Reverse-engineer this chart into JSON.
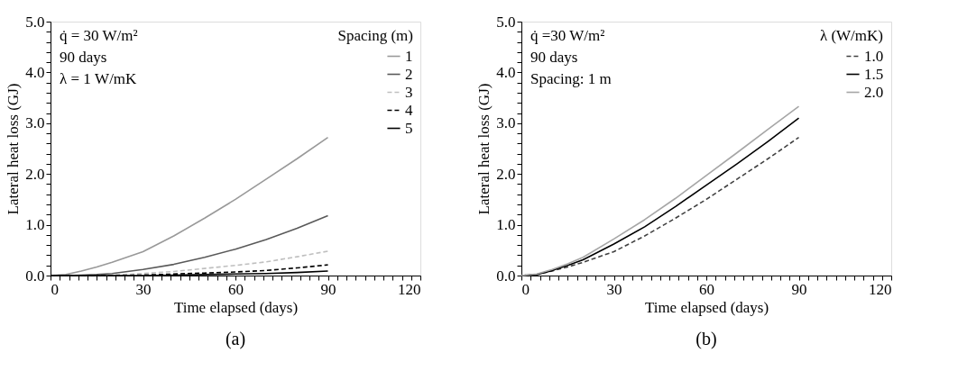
{
  "chart_data": [
    {
      "type": "line",
      "title": "(a)",
      "xlabel": "Time elapsed (days)",
      "ylabel": "Lateral heat loss (GJ)",
      "legend_title": "Spacing (m)",
      "legend": "top right",
      "grid": false,
      "marker": "none",
      "annotations": [
        "q̇ = 30 W/m²",
        "90 days",
        "λ = 1 W/mK"
      ],
      "x": [
        0,
        5,
        10,
        15,
        20,
        30,
        40,
        50,
        60,
        70,
        80,
        90
      ],
      "xlim": [
        0,
        120
      ],
      "xticks": [
        0,
        {
          "value": 3,
          "label": null
        },
        {
          "value": 6,
          "label": null
        },
        {
          "value": 9,
          "label": null
        },
        {
          "value": 12,
          "label": null
        },
        {
          "value": 15,
          "label": null
        },
        {
          "value": 18,
          "label": null
        },
        {
          "value": 21,
          "label": null
        },
        {
          "value": 24,
          "label": null
        },
        {
          "value": 27,
          "label": null
        },
        30,
        {
          "value": 33,
          "label": null
        },
        {
          "value": 36,
          "label": null
        },
        {
          "value": 39,
          "label": null
        },
        {
          "value": 42,
          "label": null
        },
        {
          "value": 45,
          "label": null
        },
        {
          "value": 48,
          "label": null
        },
        {
          "value": 51,
          "label": null
        },
        {
          "value": 54,
          "label": null
        },
        {
          "value": 57,
          "label": null
        },
        60,
        {
          "value": 63,
          "label": null
        },
        {
          "value": 66,
          "label": null
        },
        {
          "value": 69,
          "label": null
        },
        {
          "value": 72,
          "label": null
        },
        {
          "value": 75,
          "label": null
        },
        {
          "value": 78,
          "label": null
        },
        {
          "value": 81,
          "label": null
        },
        {
          "value": 84,
          "label": null
        },
        {
          "value": 87,
          "label": null
        },
        90,
        {
          "value": 93,
          "label": null
        },
        {
          "value": 96,
          "label": null
        },
        {
          "value": 99,
          "label": null
        },
        {
          "value": 102,
          "label": null
        },
        {
          "value": 105,
          "label": null
        },
        {
          "value": 108,
          "label": null
        },
        {
          "value": 111,
          "label": null
        },
        {
          "value": 114,
          "label": null
        },
        {
          "value": 117,
          "label": null
        },
        120
      ],
      "ylim": [
        0,
        5
      ],
      "yticks": [
        {
          "value": 0,
          "label": "0.0"
        },
        {
          "value": 0.2,
          "label": null
        },
        {
          "value": 0.4,
          "label": null
        },
        {
          "value": 0.6,
          "label": null
        },
        {
          "value": 0.8,
          "label": null
        },
        {
          "value": 1,
          "label": "1.0"
        },
        {
          "value": 1.2,
          "label": null
        },
        {
          "value": 1.4,
          "label": null
        },
        {
          "value": 1.6,
          "label": null
        },
        {
          "value": 1.8,
          "label": null
        },
        {
          "value": 2,
          "label": "2.0"
        },
        {
          "value": 2.2,
          "label": null
        },
        {
          "value": 2.4,
          "label": null
        },
        {
          "value": 2.6,
          "label": null
        },
        {
          "value": 2.8,
          "label": null
        },
        {
          "value": 3,
          "label": "3.0"
        },
        {
          "value": 3.2,
          "label": null
        },
        {
          "value": 3.4,
          "label": null
        },
        {
          "value": 3.6,
          "label": null
        },
        {
          "value": 3.8,
          "label": null
        },
        {
          "value": 4,
          "label": "4.0"
        },
        {
          "value": 4.2,
          "label": null
        },
        {
          "value": 4.4,
          "label": null
        },
        {
          "value": 4.6,
          "label": null
        },
        {
          "value": 4.8,
          "label": null
        },
        {
          "value": 5,
          "label": "5.0"
        }
      ],
      "series": [
        {
          "name": "1",
          "color": "#999999",
          "line_style": "solid",
          "values": [
            0,
            0.02,
            0.09,
            0.17,
            0.26,
            0.47,
            0.78,
            1.13,
            1.5,
            1.9,
            2.3,
            2.72
          ]
        },
        {
          "name": "2",
          "color": "#595959",
          "line_style": "solid",
          "values": [
            0,
            0,
            0.01,
            0.02,
            0.04,
            0.12,
            0.22,
            0.36,
            0.52,
            0.71,
            0.93,
            1.18
          ]
        },
        {
          "name": "3",
          "color": "#bfbfbf",
          "line_style": "dashed",
          "values": [
            0,
            0,
            0,
            0,
            0.01,
            0.04,
            0.08,
            0.14,
            0.2,
            0.27,
            0.37,
            0.48
          ]
        },
        {
          "name": "4",
          "color": "#000000",
          "line_style": "dashed",
          "values": [
            0,
            0,
            0,
            0,
            0,
            0.01,
            0.03,
            0.05,
            0.07,
            0.1,
            0.15,
            0.21
          ]
        },
        {
          "name": "5",
          "color": "#000000",
          "line_style": "solid",
          "values": [
            0,
            0,
            0,
            0,
            0,
            0,
            0.01,
            0.02,
            0.03,
            0.04,
            0.06,
            0.09
          ]
        }
      ]
    },
    {
      "type": "line",
      "title": "(b)",
      "xlabel": "Time elapsed (days)",
      "ylabel": "Lateral heat loss (GJ)",
      "legend_title": "λ (W/mK)",
      "legend": "top right",
      "grid": false,
      "marker": "none",
      "annotations": [
        "q̇ =30 W/m²",
        "90 days",
        "Spacing: 1 m"
      ],
      "x": [
        0,
        5,
        10,
        15,
        20,
        30,
        40,
        50,
        60,
        70,
        80,
        90
      ],
      "xlim": [
        0,
        120
      ],
      "xticks": [
        0,
        {
          "value": 3,
          "label": null
        },
        {
          "value": 6,
          "label": null
        },
        {
          "value": 9,
          "label": null
        },
        {
          "value": 12,
          "label": null
        },
        {
          "value": 15,
          "label": null
        },
        {
          "value": 18,
          "label": null
        },
        {
          "value": 21,
          "label": null
        },
        {
          "value": 24,
          "label": null
        },
        {
          "value": 27,
          "label": null
        },
        30,
        {
          "value": 33,
          "label": null
        },
        {
          "value": 36,
          "label": null
        },
        {
          "value": 39,
          "label": null
        },
        {
          "value": 42,
          "label": null
        },
        {
          "value": 45,
          "label": null
        },
        {
          "value": 48,
          "label": null
        },
        {
          "value": 51,
          "label": null
        },
        {
          "value": 54,
          "label": null
        },
        {
          "value": 57,
          "label": null
        },
        60,
        {
          "value": 63,
          "label": null
        },
        {
          "value": 66,
          "label": null
        },
        {
          "value": 69,
          "label": null
        },
        {
          "value": 72,
          "label": null
        },
        {
          "value": 75,
          "label": null
        },
        {
          "value": 78,
          "label": null
        },
        {
          "value": 81,
          "label": null
        },
        {
          "value": 84,
          "label": null
        },
        {
          "value": 87,
          "label": null
        },
        90,
        {
          "value": 93,
          "label": null
        },
        {
          "value": 96,
          "label": null
        },
        {
          "value": 99,
          "label": null
        },
        {
          "value": 102,
          "label": null
        },
        {
          "value": 105,
          "label": null
        },
        {
          "value": 108,
          "label": null
        },
        {
          "value": 111,
          "label": null
        },
        {
          "value": 114,
          "label": null
        },
        {
          "value": 117,
          "label": null
        },
        120
      ],
      "ylim": [
        0,
        5
      ],
      "yticks": [
        {
          "value": 0,
          "label": "0.0"
        },
        {
          "value": 0.2,
          "label": null
        },
        {
          "value": 0.4,
          "label": null
        },
        {
          "value": 0.6,
          "label": null
        },
        {
          "value": 0.8,
          "label": null
        },
        {
          "value": 1,
          "label": "1.0"
        },
        {
          "value": 1.2,
          "label": null
        },
        {
          "value": 1.4,
          "label": null
        },
        {
          "value": 1.6,
          "label": null
        },
        {
          "value": 1.8,
          "label": null
        },
        {
          "value": 2,
          "label": "2.0"
        },
        {
          "value": 2.2,
          "label": null
        },
        {
          "value": 2.4,
          "label": null
        },
        {
          "value": 2.6,
          "label": null
        },
        {
          "value": 2.8,
          "label": null
        },
        {
          "value": 3,
          "label": "3.0"
        },
        {
          "value": 3.2,
          "label": null
        },
        {
          "value": 3.4,
          "label": null
        },
        {
          "value": 3.6,
          "label": null
        },
        {
          "value": 3.8,
          "label": null
        },
        {
          "value": 4,
          "label": "4.0"
        },
        {
          "value": 4.2,
          "label": null
        },
        {
          "value": 4.4,
          "label": null
        },
        {
          "value": 4.6,
          "label": null
        },
        {
          "value": 4.8,
          "label": null
        },
        {
          "value": 5,
          "label": "5.0"
        }
      ],
      "series": [
        {
          "name": "1.0",
          "color": "#404040",
          "line_style": "dashed",
          "values": [
            0,
            0.02,
            0.09,
            0.17,
            0.26,
            0.47,
            0.78,
            1.13,
            1.5,
            1.9,
            2.3,
            2.72
          ]
        },
        {
          "name": "1.5",
          "color": "#000000",
          "line_style": "solid",
          "values": [
            0,
            0.02,
            0.1,
            0.2,
            0.31,
            0.62,
            0.96,
            1.36,
            1.78,
            2.2,
            2.64,
            3.1
          ]
        },
        {
          "name": "2.0",
          "color": "#a6a6a6",
          "line_style": "solid",
          "values": [
            0,
            0.03,
            0.12,
            0.23,
            0.36,
            0.72,
            1.1,
            1.52,
            1.97,
            2.42,
            2.88,
            3.33
          ]
        }
      ]
    }
  ]
}
